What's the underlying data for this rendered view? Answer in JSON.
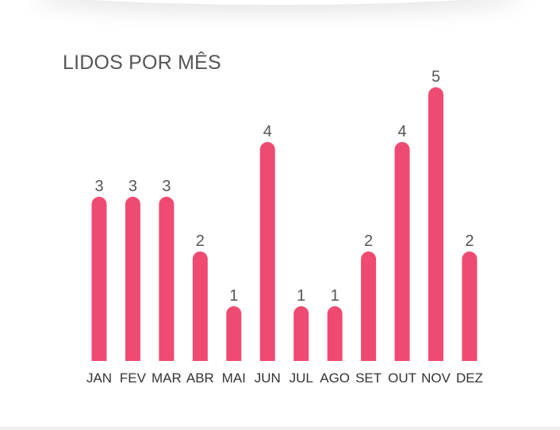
{
  "title": "LIDOS POR MÊS",
  "colors": {
    "bar": "#EF4A72"
  },
  "chart_data": {
    "type": "bar",
    "title": "LIDOS POR MÊS",
    "categories": [
      "JAN",
      "FEV",
      "MAR",
      "ABR",
      "MAI",
      "JUN",
      "JUL",
      "AGO",
      "SET",
      "OUT",
      "NOV",
      "DEZ"
    ],
    "values": [
      3,
      3,
      3,
      2,
      1,
      4,
      1,
      1,
      2,
      4,
      5,
      2
    ],
    "xlabel": "",
    "ylabel": "",
    "ylim": [
      0,
      5
    ],
    "grid": false,
    "data_labels": true
  }
}
